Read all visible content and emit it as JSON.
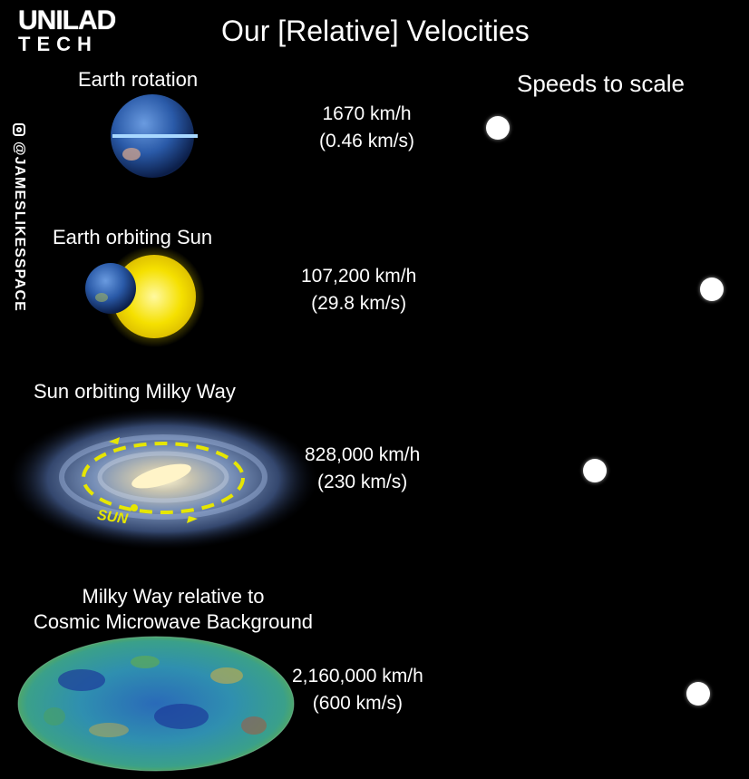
{
  "logo": {
    "line1": "UNILAD",
    "line2": "TECH"
  },
  "title": "Our [Relative] Velocities",
  "scale_label": "Speeds to scale",
  "social": {
    "icon": "instagram-icon",
    "handle": "@JAMESLIKESSPACE"
  },
  "rows": [
    {
      "label": "Earth rotation",
      "speed_kmh": "1670 km/h",
      "speed_kms": "(0.46 km/s)",
      "kms_value": 0.46
    },
    {
      "label": "Earth orbiting Sun",
      "speed_kmh": "107,200 km/h",
      "speed_kms": "(29.8 km/s)",
      "kms_value": 29.8
    },
    {
      "label": "Sun orbiting Milky Way",
      "speed_kmh": "828,000 km/h",
      "speed_kms": "(230 km/s)",
      "kms_value": 230
    },
    {
      "label_line1": "Milky Way relative to",
      "label_line2": "Cosmic Microwave Background",
      "speed_kmh": "2,160,000 km/h",
      "speed_kms": "(600 km/s)",
      "kms_value": 600
    }
  ],
  "galaxy_annotation": "SUN",
  "colors": {
    "background": "#000000",
    "text": "#ffffff",
    "sun": "#f5e000",
    "earth": "#2a5aa8",
    "annotation": "#e6e600"
  }
}
